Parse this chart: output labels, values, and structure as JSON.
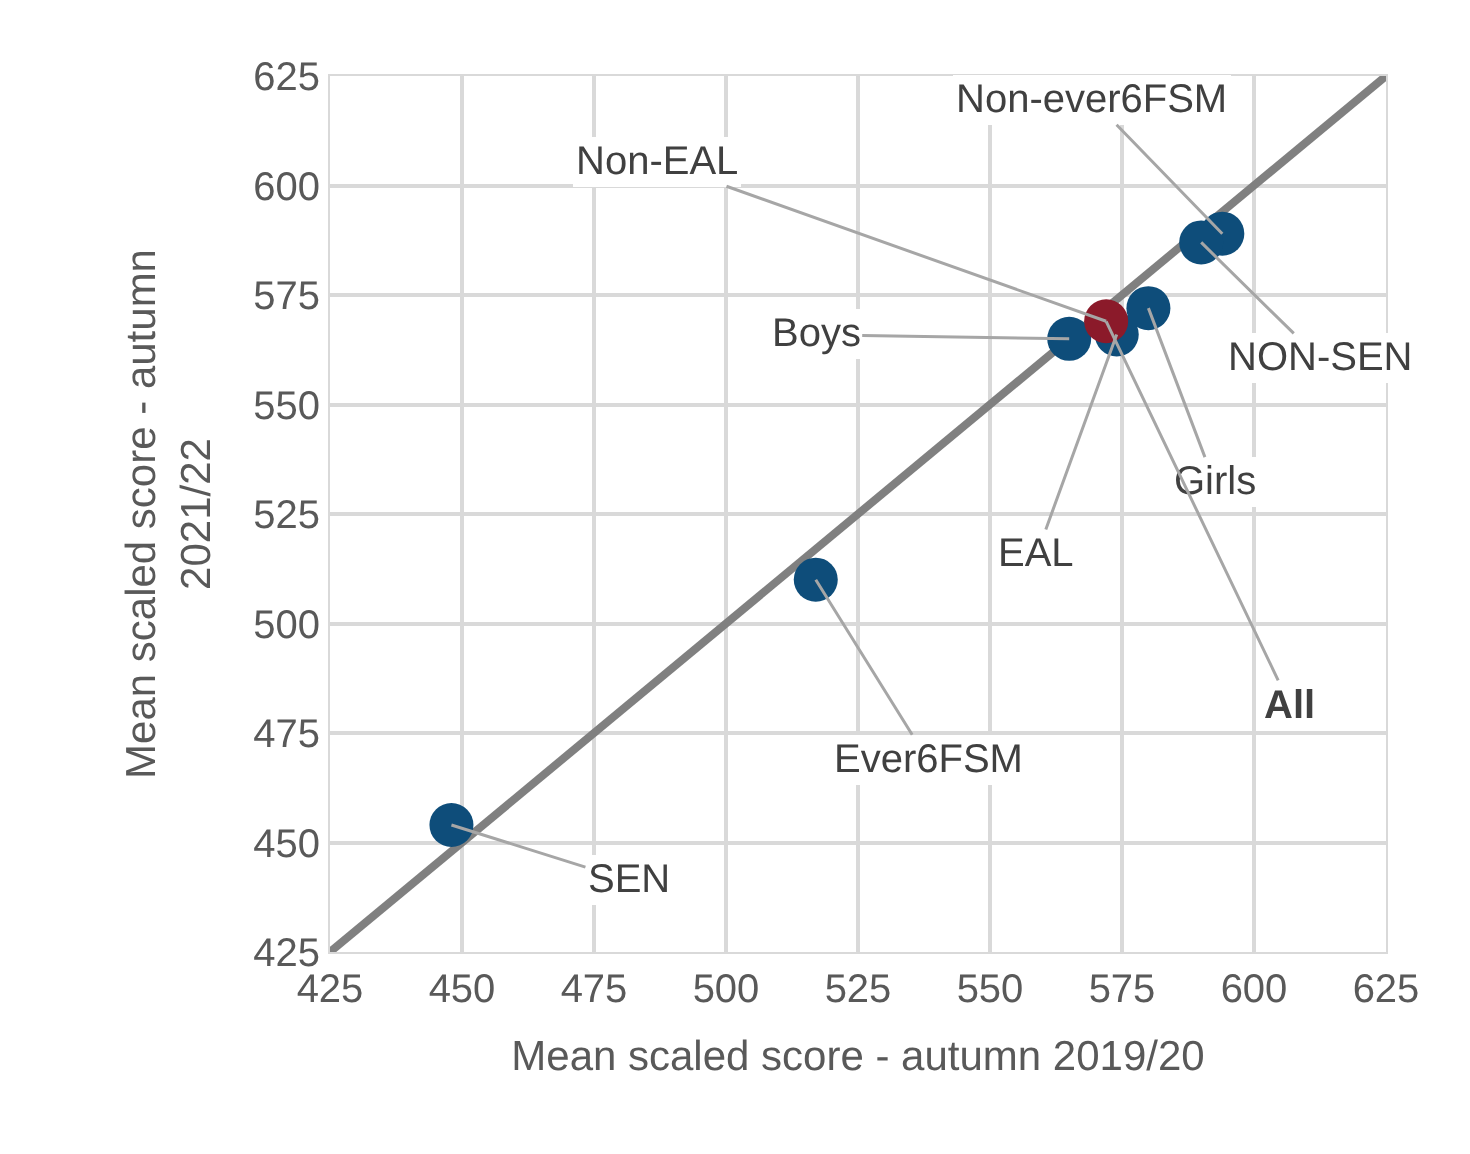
{
  "chart_data": {
    "type": "scatter",
    "xlabel": "Mean scaled score - autumn 2019/20",
    "ylabel": "Mean scaled score - autumn 2021/22",
    "xlim": [
      425,
      625
    ],
    "ylim": [
      425,
      625
    ],
    "xticks": [
      425,
      450,
      475,
      500,
      525,
      550,
      575,
      600,
      625
    ],
    "yticks": [
      425,
      450,
      475,
      500,
      525,
      550,
      575,
      600,
      625
    ],
    "grid": true,
    "marker": "circle",
    "series": [
      {
        "type": "line",
        "marker": "none",
        "color": "#808080",
        "x": [
          425,
          625
        ],
        "values": [
          425,
          625
        ]
      },
      {
        "x": [
          448,
          517,
          565,
          574,
          null,
          580,
          594,
          590,
          572
        ],
        "values": [
          454,
          510,
          565,
          566,
          null,
          572,
          589,
          587,
          569
        ],
        "colors": [
          "#0e4d7a",
          "#0e4d7a",
          "#0e4d7a",
          "#0e4d7a",
          "#0e4d7a",
          "#0e4d7a",
          "#0e4d7a",
          "#0e4d7a",
          "#8b1a2a"
        ]
      }
    ],
    "annotations": [
      {
        "text": "SEN",
        "x": 448,
        "y": 454
      },
      {
        "text": "Ever6FSM",
        "x": 517,
        "y": 510
      },
      {
        "text": "Boys",
        "x": 565,
        "y": 565
      },
      {
        "text": "EAL",
        "x": 574,
        "y": 566
      },
      {
        "text": "Non-EAL",
        "x": 572,
        "y": 569
      },
      {
        "text": "Girls",
        "x": 580,
        "y": 572
      },
      {
        "text": "Non-ever6FSM",
        "x": 594,
        "y": 589
      },
      {
        "text": "NON-SEN",
        "x": 590,
        "y": 587
      },
      {
        "text": "All",
        "x": 572,
        "y": 569
      }
    ]
  }
}
